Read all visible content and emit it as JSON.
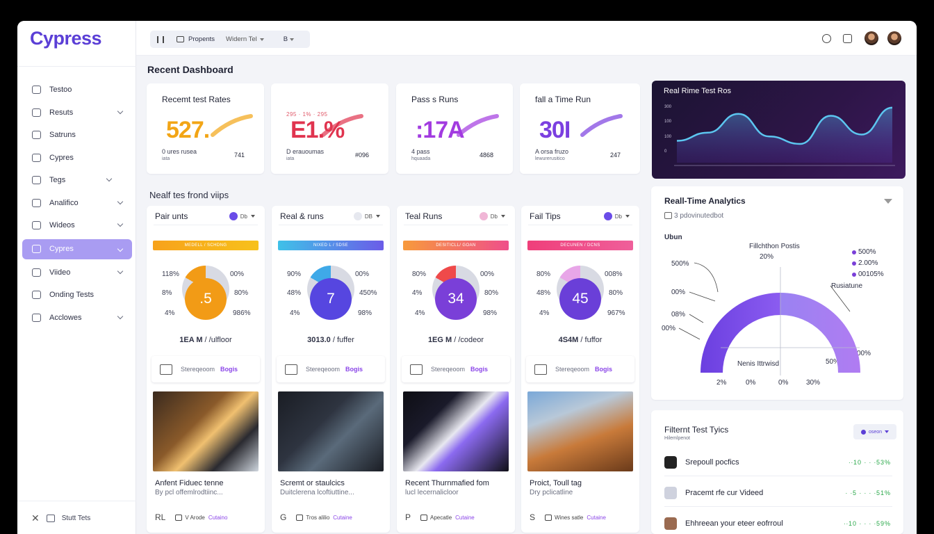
{
  "app": {
    "name": "Cypress"
  },
  "sidebar": {
    "items": [
      {
        "label": "Testoo",
        "chevron": false
      },
      {
        "label": "Resuts",
        "chevron": true
      },
      {
        "label": "Satruns",
        "chevron": false
      },
      {
        "label": "Cypres",
        "chevron": false
      },
      {
        "label": "Tegs",
        "chevron": true
      },
      {
        "label": "Analifico",
        "chevron": true
      },
      {
        "label": "Wideos",
        "chevron": true
      },
      {
        "label": "Cypres",
        "chevron": true,
        "active": true
      },
      {
        "label": "Viideo",
        "chevron": true
      },
      {
        "label": "Onding Tests",
        "chevron": false
      },
      {
        "label": "Acclowes",
        "chevron": true
      }
    ],
    "footer_label": "Stutt Tets"
  },
  "topbar": {
    "filter_label": "Propents",
    "filter_select": "Widern Tel",
    "filter_extra": "B"
  },
  "dashboard": {
    "title": "Recent Dashboard",
    "stats": [
      {
        "title": "Recemt test Rates",
        "sub": "",
        "value": "527.",
        "foot": "0 ures rusea",
        "foot2": "iata",
        "num": "741",
        "color": "#f2a516"
      },
      {
        "title": "",
        "sub": "295 · 1% · 295",
        "value": "E1.%",
        "foot": "D erauoumas",
        "foot2": "iata",
        "num": "#096",
        "color": "#e0344f"
      },
      {
        "title": "Pass s Runs",
        "sub": "",
        "value": ":17A",
        "foot": "4 pass",
        "foot2": "hquaada",
        "num": "4868",
        "color": "#a23be0"
      },
      {
        "title": "fall a Time Run",
        "sub": "",
        "value": "30I",
        "foot": "A orsa fruzo",
        "foot2": "lewurerusitico",
        "num": "247",
        "color": "#7b3fe0"
      }
    ]
  },
  "runs_section": {
    "title": "Nealf tes frond viips",
    "cards": [
      {
        "title": "Pair unts",
        "ctl": "Db",
        "ctl_color": "#6a4ce8",
        "bar_label": "MEDELL / SCHDNG",
        "bar_color": "linear-gradient(90deg,#f7a21b,#f7c11b)",
        "left_pcts": [
          "118%",
          "8%",
          "4%"
        ],
        "right_pcts": [
          "00%",
          "80%",
          "986%"
        ],
        "gauge": ".5",
        "gauge_color": "#f29b16",
        "ring_color": "#f29b16",
        "meta_a": "1EA M",
        "meta_b": "/ulfloor",
        "strip_text": "Stereqeoom",
        "strip_link": "Bogis",
        "thumb_title": "Anfent Fiduec tenne",
        "thumb_sub": "By pcl offemlrodtiinc...",
        "foot_left": "RL",
        "foot_mid": "V Arode",
        "foot_link": "Cutaino"
      },
      {
        "title": "Real & runs",
        "ctl": "DB",
        "ctl_color": "#e6e8ef",
        "bar_label": "NIXED L / SDSE",
        "bar_color": "linear-gradient(90deg,#3fc1e8,#6b5ce8)",
        "left_pcts": [
          "90%",
          "48%",
          "4%"
        ],
        "right_pcts": [
          "00%",
          "450%",
          "98%"
        ],
        "gauge": "7",
        "gauge_color": "#5646e0",
        "ring_color": "#3fa9e8",
        "meta_a": "3013.0",
        "meta_b": "fuffer",
        "strip_text": "Stereqeoom",
        "strip_link": "Bogis",
        "thumb_title": "Scremt or staulcics",
        "thumb_sub": "Duitclerena lcoftiuttine...",
        "foot_left": "G",
        "foot_mid": "Tros alilio",
        "foot_link": "Cutaine"
      },
      {
        "title": "Teal Runs",
        "ctl": "Db",
        "ctl_color": "#f0b6d6",
        "bar_label": "DESITICLL/ GOAN",
        "bar_color": "linear-gradient(90deg,#f79a3c,#ef4f8a)",
        "left_pcts": [
          "80%",
          "4%",
          "4%"
        ],
        "right_pcts": [
          "00%",
          "80%",
          "98%"
        ],
        "gauge": "34",
        "gauge_color": "#7a3fd8",
        "ring_color": "#ef4a4a",
        "meta_a": "1EG M",
        "meta_b": "/codeor",
        "strip_text": "Stereqeoom",
        "strip_link": "Bogis",
        "thumb_title": "Recent Thurnmafied fom",
        "thumb_sub": "lucl lecernalicloor",
        "foot_left": "P",
        "foot_mid": "Apecatle",
        "foot_link": "Cutaine"
      },
      {
        "title": "Fail Tips",
        "ctl": "Db",
        "ctl_color": "#6a4ce8",
        "bar_label": "DECUNEN / DCNS",
        "bar_color": "linear-gradient(90deg,#ef3f7a,#ef5f9a)",
        "left_pcts": [
          "80%",
          "48%",
          "4%"
        ],
        "right_pcts": [
          "008%",
          "80%",
          "967%"
        ],
        "gauge": "45",
        "gauge_color": "#6a3fd8",
        "ring_color": "#e8a6e8",
        "meta_a": "4S4M",
        "meta_b": "fuffor",
        "strip_text": "Stereqeoom",
        "strip_link": "Bogis",
        "thumb_title": "Proict, Toull tag",
        "thumb_sub": "Dry pclicatline",
        "foot_left": "S",
        "foot_mid": "Wines satle",
        "foot_link": "Cutaine"
      }
    ]
  },
  "realtime": {
    "title": "Real Rime Test Ros",
    "yticks": [
      "300",
      "100",
      "100",
      "0"
    ],
    "series": [
      0.35,
      0.48,
      0.78,
      0.42,
      0.3,
      0.75,
      0.45,
      0.88
    ]
  },
  "analytics": {
    "title": "Reall-Time Analytics",
    "sub": "3 pdovinutedbot",
    "label_top": "Ubun",
    "label_mid": "Fillchthon Postis",
    "label_mid2": "20%",
    "left_labels": [
      "500%",
      "00%",
      "08%",
      "00%"
    ],
    "right_label": "Rusiatune",
    "bottom_label": "Nenis Ittrwisd",
    "bottom_right": "50%",
    "bottom_right2": "00%",
    "x_labels": [
      "2%",
      "0%",
      "0%",
      "30%"
    ],
    "legend": [
      {
        "label": "500%",
        "color": "#7a3fd8"
      },
      {
        "label": "2.00%",
        "color": "#7a3fd8"
      },
      {
        "label": "00105%",
        "color": "#7a3fd8"
      }
    ]
  },
  "filter_tests": {
    "title": "Filternt Test Tyics",
    "sub": "Hilemlpenot",
    "filter_label": "oseon",
    "rows": [
      {
        "label": "Srepoull pocfics",
        "value": "∙∙10 ∙ ∙ ∙53%",
        "icon_color": "#222"
      },
      {
        "label": "Pracemt rfe cur Videed",
        "value": "∙ ∙5 ∙ ∙ ∙ ∙51%",
        "icon_color": "#cfd2de"
      },
      {
        "label": "Ehhreean your eteer eofrroul",
        "value": "∙∙10 ∙ ∙ ∙ ∙59%",
        "icon_color": "#9a6a50"
      }
    ]
  }
}
